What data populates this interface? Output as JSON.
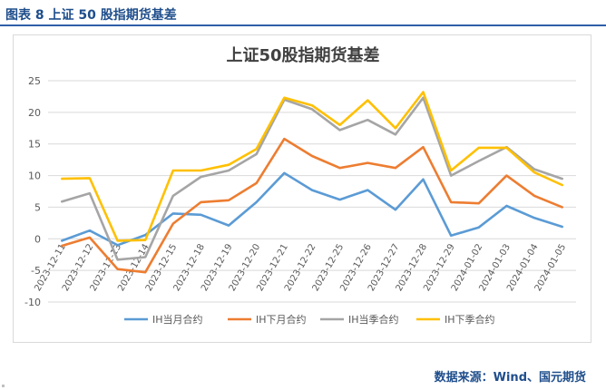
{
  "header": {
    "figure_title": "图表 8  上证 50 股指期货基差"
  },
  "footer": {
    "source": "数据来源：Wind、国元期货"
  },
  "colors": {
    "series": [
      "#5b9bd5",
      "#ed7d31",
      "#a5a5a5",
      "#ffc000"
    ],
    "grid": "#d9d9d9",
    "axis_text": "#595959",
    "header_blue": "#1f4e8c"
  },
  "chart_data": {
    "type": "line",
    "title": "上证50股指期货基差",
    "xlabel": "",
    "ylabel": "",
    "ylim": [
      -10,
      25
    ],
    "yticks": [
      -10,
      -5,
      0,
      5,
      10,
      15,
      20,
      25
    ],
    "grid": true,
    "legend": "bottom",
    "categories": [
      "2023-12-11",
      "2023-12-12",
      "2023-12-13",
      "2023-12-14",
      "2023-12-15",
      "2023-12-18",
      "2023-12-19",
      "2023-12-20",
      "2023-12-21",
      "2023-12-22",
      "2023-12-25",
      "2023-12-26",
      "2023-12-27",
      "2023-12-28",
      "2023-12-29",
      "2024-01-02",
      "2024-01-03",
      "2024-01-04",
      "2024-01-05"
    ],
    "series": [
      {
        "name": "IH当月合约",
        "values": [
          -0.3,
          1.3,
          -1.0,
          0.6,
          4.0,
          3.8,
          2.1,
          5.8,
          10.4,
          7.7,
          6.2,
          7.7,
          4.6,
          9.4,
          0.5,
          1.8,
          5.2,
          3.3,
          1.9
        ]
      },
      {
        "name": "IH下月合约",
        "values": [
          -1.1,
          0.2,
          -4.8,
          -5.3,
          2.4,
          5.8,
          6.1,
          8.8,
          15.8,
          13.1,
          11.2,
          12.0,
          11.2,
          14.5,
          5.8,
          5.6,
          10.0,
          6.8,
          5.0
        ]
      },
      {
        "name": "IH当季合约",
        "values": [
          5.9,
          7.2,
          -3.3,
          -2.9,
          6.8,
          9.8,
          10.8,
          13.4,
          22.0,
          20.5,
          17.2,
          18.8,
          16.5,
          22.3,
          10.0,
          12.3,
          14.5,
          11.0,
          9.5
        ]
      },
      {
        "name": "IH下季合约",
        "values": [
          9.5,
          9.6,
          -0.3,
          -0.2,
          10.8,
          10.8,
          11.7,
          14.2,
          22.3,
          21.1,
          18.0,
          21.9,
          17.5,
          23.2,
          10.8,
          14.4,
          14.4,
          10.5,
          8.5
        ]
      }
    ]
  }
}
